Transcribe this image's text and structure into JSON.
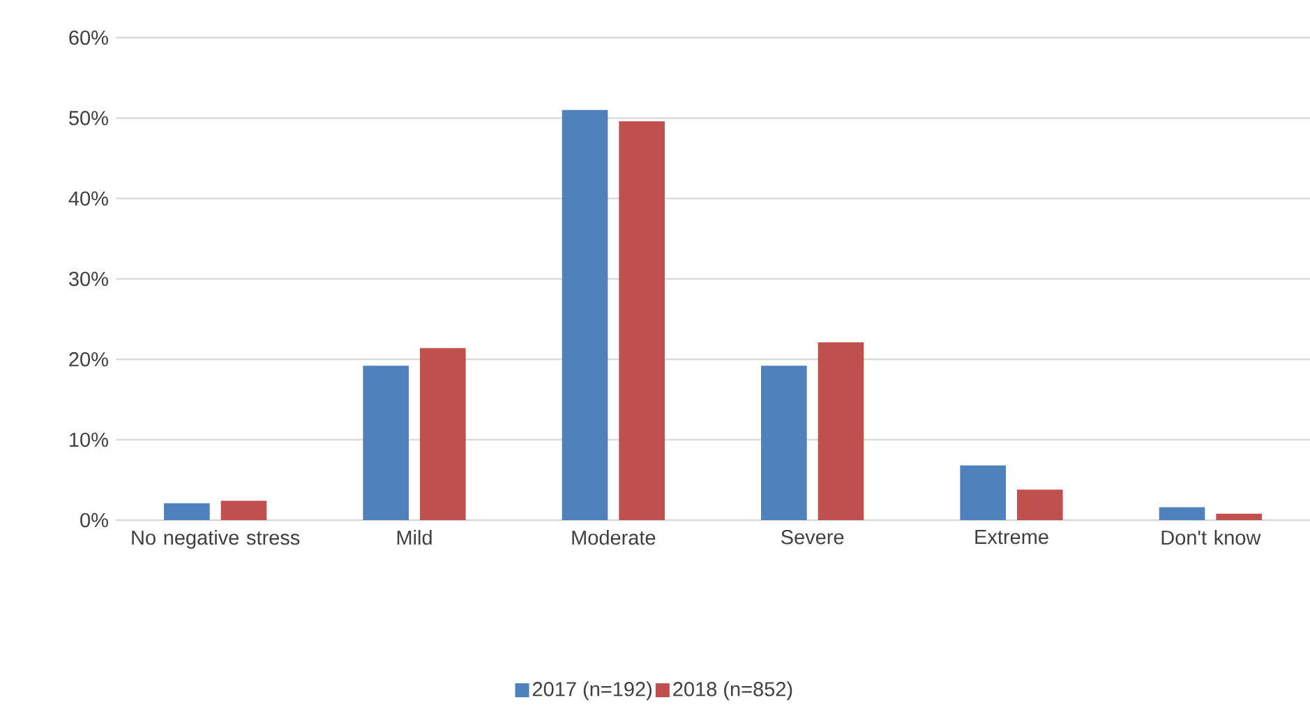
{
  "chart_data": {
    "type": "bar",
    "categories": [
      "No negative stress",
      "Mild",
      "Moderate",
      "Severe",
      "Extreme",
      "Don't know"
    ],
    "series": [
      {
        "name": "2017 (n=192)",
        "color": "#4f81bd",
        "values": [
          2.1,
          19.2,
          51.0,
          19.2,
          6.8,
          1.6
        ]
      },
      {
        "name": "2018 (n=852)",
        "color": "#c0504d",
        "values": [
          2.4,
          21.4,
          49.6,
          22.1,
          3.8,
          0.8
        ]
      }
    ],
    "ylim": [
      0,
      60
    ],
    "yticks": [
      {
        "value": 0,
        "label": "0%"
      },
      {
        "value": 10,
        "label": "10%"
      },
      {
        "value": 20,
        "label": "20%"
      },
      {
        "value": 30,
        "label": "30%"
      },
      {
        "value": 40,
        "label": "40%"
      },
      {
        "value": 50,
        "label": "50%"
      },
      {
        "value": 60,
        "label": "60%"
      }
    ],
    "grid": "y",
    "legend": "bottom"
  }
}
